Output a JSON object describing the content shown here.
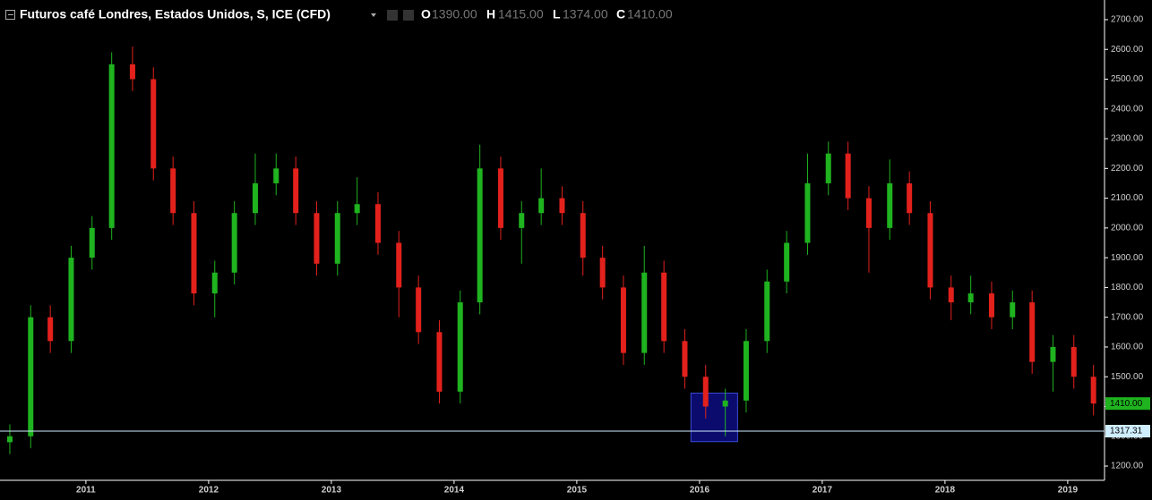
{
  "chart_data": {
    "type": "candlestick",
    "title": "Futuros café Londres, Estados Unidos, S, ICE (CFD)",
    "header": {
      "o_label": "O",
      "o_value": "1390.00",
      "h_label": "H",
      "h_value": "1415.00",
      "l_label": "L",
      "l_value": "1374.00",
      "c_label": "C",
      "c_value": "1410.00"
    },
    "up_color": "#1fb31f",
    "down_color": "#e3211c",
    "x": [
      2010.38,
      2010.55,
      2010.71,
      2010.88,
      2011.05,
      2011.21,
      2011.38,
      2011.55,
      2011.71,
      2011.88,
      2012.05,
      2012.21,
      2012.38,
      2012.55,
      2012.71,
      2012.88,
      2013.05,
      2013.21,
      2013.38,
      2013.55,
      2013.71,
      2013.88,
      2014.05,
      2014.21,
      2014.38,
      2014.55,
      2014.71,
      2014.88,
      2015.05,
      2015.21,
      2015.38,
      2015.55,
      2015.71,
      2015.88,
      2016.05,
      2016.21,
      2016.38,
      2016.55,
      2016.71,
      2016.88,
      2017.05,
      2017.21,
      2017.38,
      2017.55,
      2017.71,
      2017.88,
      2018.05,
      2018.21,
      2018.38,
      2018.55,
      2018.71,
      2018.88,
      2019.05,
      2019.21
    ],
    "open": [
      1280,
      1300,
      1700,
      1620,
      1900,
      2000,
      2550,
      2500,
      2200,
      2050,
      1780,
      1850,
      2050,
      2150,
      2200,
      2050,
      1880,
      2050,
      2080,
      1950,
      1800,
      1650,
      1450,
      1750,
      2200,
      2000,
      2050,
      2100,
      2050,
      1900,
      1800,
      1580,
      1850,
      1620,
      1500,
      1400,
      1420,
      1620,
      1820,
      1950,
      2150,
      2250,
      2100,
      2000,
      2150,
      2050,
      1800,
      1750,
      1780,
      1700,
      1750,
      1550,
      1600,
      1500
    ],
    "high": [
      1340,
      1740,
      1740,
      1940,
      2040,
      2590,
      2610,
      2540,
      2240,
      2090,
      1890,
      2090,
      2250,
      2250,
      2240,
      2090,
      2090,
      2170,
      2120,
      1990,
      1840,
      1690,
      1790,
      2280,
      2240,
      2090,
      2200,
      2140,
      2090,
      1940,
      1840,
      1940,
      1890,
      1660,
      1540,
      1460,
      1660,
      1860,
      1990,
      2250,
      2290,
      2290,
      2140,
      2230,
      2190,
      2090,
      1840,
      1840,
      1820,
      1790,
      1790,
      1640,
      1640,
      1540
    ],
    "low": [
      1240,
      1260,
      1580,
      1580,
      1860,
      1960,
      2460,
      2160,
      2010,
      1740,
      1700,
      1810,
      2010,
      2110,
      2010,
      1840,
      1840,
      2010,
      1910,
      1700,
      1610,
      1410,
      1410,
      1710,
      1960,
      1880,
      2010,
      2010,
      1840,
      1760,
      1540,
      1540,
      1580,
      1460,
      1360,
      1300,
      1380,
      1580,
      1780,
      1910,
      2110,
      2060,
      1850,
      1960,
      2010,
      1760,
      1690,
      1710,
      1660,
      1660,
      1510,
      1450,
      1460,
      1370
    ],
    "close": [
      1300,
      1700,
      1620,
      1900,
      2000,
      2550,
      2500,
      2200,
      2050,
      1780,
      1850,
      2050,
      2150,
      2200,
      2050,
      1880,
      2050,
      2080,
      1950,
      1800,
      1650,
      1450,
      1750,
      2200,
      2000,
      2050,
      2100,
      2050,
      1900,
      1800,
      1580,
      1850,
      1620,
      1500,
      1400,
      1420,
      1620,
      1820,
      1950,
      2150,
      2250,
      2100,
      2000,
      2150,
      2050,
      1800,
      1750,
      1780,
      1700,
      1750,
      1550,
      1600,
      1500,
      1410
    ],
    "xlim": [
      2010.3,
      2019.3
    ],
    "ylim": [
      1152,
      2766
    ],
    "xticks": [
      2011,
      2012,
      2013,
      2014,
      2015,
      2016,
      2017,
      2018,
      2019
    ],
    "yticks": [
      {
        "value": 1200,
        "label": "1200.00"
      },
      {
        "value": 1300,
        "label": "1300.00"
      },
      {
        "value": 1400,
        "label": "1400.00"
      },
      {
        "value": 1500,
        "label": "1500.00"
      },
      {
        "value": 1600,
        "label": "1600.00"
      },
      {
        "value": 1700,
        "label": "1700.00"
      },
      {
        "value": 1800,
        "label": "1800.00"
      },
      {
        "value": 1900,
        "label": "1900.00"
      },
      {
        "value": 2000,
        "label": "2000.00"
      },
      {
        "value": 2100,
        "label": "2100.00"
      },
      {
        "value": 2200,
        "label": "2200.00"
      },
      {
        "value": 2300,
        "label": "2300.00"
      },
      {
        "value": 2400,
        "label": "2400.00"
      },
      {
        "value": 2500,
        "label": "2500.00"
      },
      {
        "value": 2600,
        "label": "2600.00"
      },
      {
        "value": 2700,
        "label": "2700.00"
      }
    ],
    "last_price_label": "1410.00",
    "hline": {
      "value": 1317.31,
      "label": "1317.31",
      "color": "#cfeeff"
    },
    "highlight": {
      "x": [
        2015.93,
        2016.31
      ],
      "y": [
        1282,
        1445
      ],
      "color": "#0b0b6e",
      "edge": "#3b4bd6"
    }
  }
}
